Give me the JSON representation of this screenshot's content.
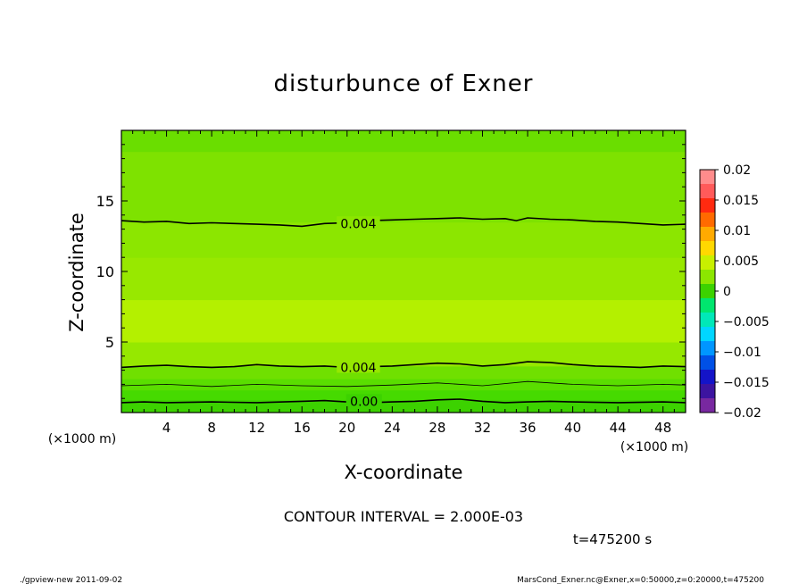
{
  "chart_data": {
    "type": "contour",
    "title": "disturbunce of Exner",
    "xlabel": "X-coordinate",
    "ylabel": "Z-coordinate",
    "x_unit": "(×1000 m)",
    "y_unit": "(×1000 m)",
    "xlim": [
      0,
      50
    ],
    "ylim": [
      0,
      20
    ],
    "x_ticks": [
      4,
      8,
      12,
      16,
      20,
      24,
      28,
      32,
      36,
      40,
      44,
      48
    ],
    "y_ticks": [
      5,
      10,
      15
    ],
    "contour_interval_text": "CONTOUR INTERVAL = 2.000E-03",
    "time_text": "t=475200 s",
    "colorbar": {
      "ticks": [
        "0.02",
        "0.015",
        "0.01",
        "0.005",
        "0",
        "−0.005",
        "−0.01",
        "−0.015",
        "−0.02"
      ],
      "levels": [
        0.02,
        0.0175,
        0.015,
        0.0125,
        0.01,
        0.0075,
        0.005,
        0.0025,
        0,
        -0.0025,
        -0.005,
        -0.0075,
        -0.01,
        -0.0125,
        -0.015,
        -0.0175,
        -0.02
      ],
      "colors": [
        "#ff8c8c",
        "#ff5a5a",
        "#ff2a10",
        "#ff6a00",
        "#ffaa00",
        "#ffd800",
        "#c8f000",
        "#8ce600",
        "#3cd200",
        "#00e66e",
        "#00e8b8",
        "#00d6ff",
        "#0096ff",
        "#0050e6",
        "#1414c8",
        "#3c14a0",
        "#7828a0"
      ]
    },
    "contour_lines": [
      {
        "label": "0.004",
        "label_at": [
          21,
          13.4
        ],
        "points": [
          [
            0,
            13.6
          ],
          [
            2,
            13.5
          ],
          [
            4,
            13.55
          ],
          [
            6,
            13.4
          ],
          [
            8,
            13.45
          ],
          [
            10,
            13.4
          ],
          [
            12,
            13.35
          ],
          [
            14,
            13.3
          ],
          [
            16,
            13.2
          ],
          [
            18,
            13.4
          ],
          [
            20,
            13.45
          ],
          [
            22,
            13.6
          ],
          [
            24,
            13.65
          ],
          [
            26,
            13.7
          ],
          [
            28,
            13.75
          ],
          [
            30,
            13.8
          ],
          [
            32,
            13.7
          ],
          [
            34,
            13.75
          ],
          [
            35,
            13.6
          ],
          [
            36,
            13.8
          ],
          [
            38,
            13.7
          ],
          [
            40,
            13.65
          ],
          [
            42,
            13.55
          ],
          [
            44,
            13.5
          ],
          [
            46,
            13.4
          ],
          [
            48,
            13.3
          ],
          [
            50,
            13.35
          ]
        ]
      },
      {
        "label": "0.004",
        "label_at": [
          21,
          3.2
        ],
        "points": [
          [
            0,
            3.2
          ],
          [
            2,
            3.3
          ],
          [
            4,
            3.35
          ],
          [
            6,
            3.25
          ],
          [
            8,
            3.2
          ],
          [
            10,
            3.25
          ],
          [
            12,
            3.4
          ],
          [
            14,
            3.3
          ],
          [
            16,
            3.25
          ],
          [
            18,
            3.3
          ],
          [
            20,
            3.2
          ],
          [
            22,
            3.25
          ],
          [
            24,
            3.3
          ],
          [
            26,
            3.4
          ],
          [
            28,
            3.5
          ],
          [
            30,
            3.45
          ],
          [
            32,
            3.3
          ],
          [
            34,
            3.4
          ],
          [
            36,
            3.6
          ],
          [
            38,
            3.55
          ],
          [
            40,
            3.4
          ],
          [
            42,
            3.3
          ],
          [
            44,
            3.25
          ],
          [
            46,
            3.2
          ],
          [
            48,
            3.3
          ],
          [
            50,
            3.25
          ]
        ]
      },
      {
        "label": "",
        "label_at": null,
        "points": [
          [
            0,
            1.9
          ],
          [
            4,
            2.0
          ],
          [
            8,
            1.85
          ],
          [
            12,
            2.0
          ],
          [
            16,
            1.9
          ],
          [
            20,
            1.85
          ],
          [
            24,
            1.95
          ],
          [
            28,
            2.1
          ],
          [
            32,
            1.9
          ],
          [
            36,
            2.2
          ],
          [
            40,
            2.0
          ],
          [
            44,
            1.9
          ],
          [
            48,
            2.0
          ],
          [
            50,
            1.95
          ]
        ]
      },
      {
        "label": "0.00",
        "label_at": [
          21.5,
          0.8
        ],
        "points": [
          [
            0,
            0.7
          ],
          [
            2,
            0.75
          ],
          [
            4,
            0.7
          ],
          [
            8,
            0.75
          ],
          [
            12,
            0.7
          ],
          [
            16,
            0.8
          ],
          [
            18,
            0.85
          ],
          [
            20,
            0.75
          ],
          [
            22,
            0.7
          ],
          [
            24,
            0.75
          ],
          [
            26,
            0.8
          ],
          [
            28,
            0.9
          ],
          [
            30,
            0.95
          ],
          [
            32,
            0.8
          ],
          [
            34,
            0.7
          ],
          [
            36,
            0.75
          ],
          [
            38,
            0.8
          ],
          [
            40,
            0.75
          ],
          [
            44,
            0.7
          ],
          [
            48,
            0.75
          ],
          [
            50,
            0.7
          ]
        ]
      }
    ],
    "fill_bands": [
      {
        "from": 0,
        "to": 0.9,
        "color": "#3cd200"
      },
      {
        "from": 0.9,
        "to": 1.6,
        "color": "#46da00"
      },
      {
        "from": 1.6,
        "to": 2.4,
        "color": "#5ade00"
      },
      {
        "from": 2.4,
        "to": 3.3,
        "color": "#70e000"
      },
      {
        "from": 3.3,
        "to": 5.0,
        "color": "#96e800"
      },
      {
        "from": 5.0,
        "to": 8.0,
        "color": "#b4f000"
      },
      {
        "from": 8.0,
        "to": 11.0,
        "color": "#98e800"
      },
      {
        "from": 11.0,
        "to": 13.5,
        "color": "#8ce600"
      },
      {
        "from": 13.5,
        "to": 18.5,
        "color": "#7ee200"
      },
      {
        "from": 18.5,
        "to": 20.0,
        "color": "#6ade00"
      }
    ]
  },
  "footer": {
    "left": "./gpview-new   2011-09-02",
    "right": "MarsCond_Exner.nc@Exner,x=0:50000,z=0:20000,t=475200"
  }
}
